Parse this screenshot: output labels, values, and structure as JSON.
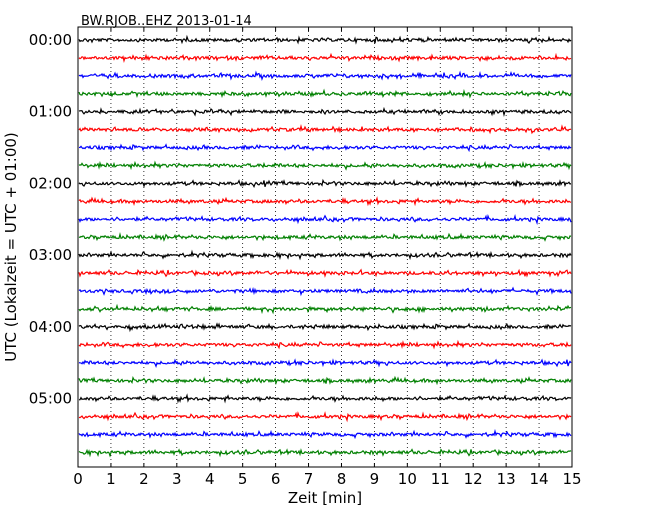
{
  "chart_data": {
    "type": "line",
    "title": "BW.RJOB..EHZ 2013-01-14",
    "xlabel": "Zeit  [min]",
    "ylabel": "UTC (Lokalzeit = UTC + 01:00)",
    "xlim": [
      0,
      15
    ],
    "x_ticks": [
      0,
      1,
      2,
      3,
      4,
      5,
      6,
      7,
      8,
      9,
      10,
      11,
      12,
      13,
      14,
      15
    ],
    "x_tick_labels": [
      "0",
      "1",
      "2",
      "3",
      "4",
      "5",
      "6",
      "7",
      "8",
      "9",
      "10",
      "11",
      "12",
      "13",
      "14",
      "15"
    ],
    "y_tick_labels": [
      "00:00",
      "01:00",
      "02:00",
      "03:00",
      "04:00",
      "05:00"
    ],
    "grid": "vertical dotted",
    "trace_interval_min": 15,
    "trace_count": 24,
    "trace_colors": [
      "#000000",
      "#ff0000",
      "#0000ff",
      "#008000"
    ]
  }
}
